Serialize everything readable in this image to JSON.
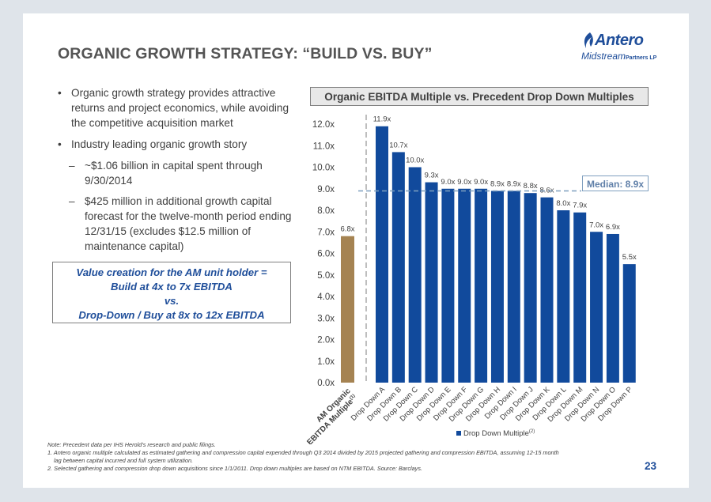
{
  "title": "ORGANIC GROWTH STRATEGY: “BUILD VS. BUY”",
  "logo": {
    "name": "Antero",
    "sub": "Midstream",
    "tag": "Partners LP"
  },
  "bullets": {
    "b1": "Organic growth strategy provides attractive returns and project economics, while avoiding the competitive acquisition market",
    "b2": "Industry leading organic growth story",
    "s1": "~$1.06 billion in capital spent through 9/30/2014",
    "s2": "$425 million in additional growth capital forecast for the twelve-month period ending 12/31/15 (excludes $12.5 million of maintenance capital)"
  },
  "value_box": {
    "line1": "Value creation for the AM unit holder =",
    "line2": "Build at 4x to 7x EBITDA",
    "line3": "vs.",
    "line4": "Drop-Down / Buy at 8x to 12x EBITDA"
  },
  "chart_header": "Organic EBITDA Multiple vs. Precedent Drop Down Multiples",
  "median_label": "Median: 8.9x",
  "notes": {
    "n0": "Note: Precedent data per IHS Herold’s research and public filings.",
    "n1": "1. Antero organic multiple calculated as estimated gathering and compression capital expended through Q3 2014 divided by 2015 projected gathering and compression EBITDA, assuming 12-15 month",
    "n1b": "lag between capital incurred and full system utilization.",
    "n2": "2. Selected gathering and compression drop down acquisitions since 1/1/2011. Drop down multiples are based on NTM EBITDA. Source: Barclays."
  },
  "page_number": "23",
  "colors": {
    "organic_bar": "#a58352",
    "dropdown_bar": "#114a9c",
    "accent": "#1f4e9a"
  },
  "chart_data": {
    "type": "bar",
    "ylim": [
      0,
      12
    ],
    "yticks": [
      "0.0x",
      "1.0x",
      "2.0x",
      "3.0x",
      "4.0x",
      "5.0x",
      "6.0x",
      "7.0x",
      "8.0x",
      "9.0x",
      "10.0x",
      "11.0x",
      "12.0x"
    ],
    "organic": {
      "category": [
        "AM Organic",
        "EBITDA Multiple"
      ],
      "value": 6.8,
      "label": "6.8x",
      "sup": "(1)"
    },
    "categories": [
      "Drop Down A",
      "Drop Down B",
      "Drop Down C",
      "Drop Down D",
      "Drop Down E",
      "Drop Down F",
      "Drop Down G",
      "Drop Down H",
      "Drop Down I",
      "Drop Down J",
      "Drop Down K",
      "Drop Down L",
      "Drop Down M",
      "Drop Down N",
      "Drop Down O",
      "Drop Down P"
    ],
    "values": [
      11.9,
      10.7,
      10.0,
      9.3,
      9.0,
      9.0,
      9.0,
      8.9,
      8.9,
      8.8,
      8.6,
      8.0,
      7.9,
      7.0,
      6.9,
      5.5
    ],
    "labels": [
      "11.9x",
      "10.7x",
      "10.0x",
      "9.3x",
      "9.0x",
      "9.0x",
      "9.0x",
      "8.9x",
      "8.9x",
      "8.8x",
      "8.6x",
      "8.0x",
      "7.9x",
      "7.0x",
      "6.9x",
      "5.5x"
    ],
    "median": 8.9,
    "legend": "Drop Down Multiple",
    "legend_sup": "(2)"
  }
}
